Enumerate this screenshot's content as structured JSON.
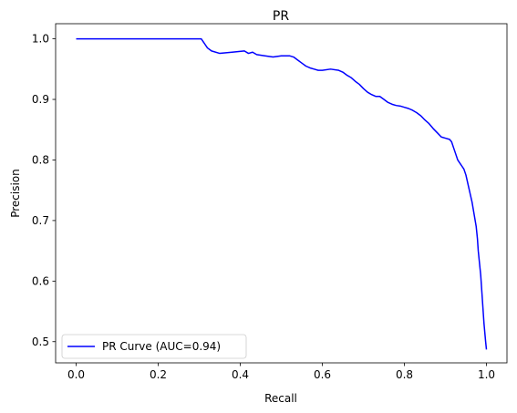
{
  "chart_data": {
    "type": "line",
    "title": "PR",
    "xlabel": "Recall",
    "ylabel": "Precision",
    "xlim": [
      -0.05,
      1.05
    ],
    "ylim": [
      0.465,
      1.025
    ],
    "xticks": [
      0.0,
      0.2,
      0.4,
      0.6,
      0.8,
      1.0
    ],
    "xtick_labels": [
      "0.0",
      "0.2",
      "0.4",
      "0.6",
      "0.8",
      "1.0"
    ],
    "yticks": [
      0.5,
      0.6,
      0.7,
      0.8,
      0.9,
      1.0
    ],
    "ytick_labels": [
      "0.5",
      "0.6",
      "0.7",
      "0.8",
      "0.9",
      "1.0"
    ],
    "grid": false,
    "legend_position": "lower-left",
    "series": [
      {
        "name": "PR Curve (AUC=0.94)",
        "color": "#0000ff",
        "x": [
          0.0,
          0.1,
          0.2,
          0.3,
          0.305,
          0.31,
          0.315,
          0.32,
          0.33,
          0.35,
          0.38,
          0.41,
          0.42,
          0.43,
          0.44,
          0.46,
          0.48,
          0.5,
          0.52,
          0.53,
          0.54,
          0.55,
          0.56,
          0.57,
          0.58,
          0.59,
          0.6,
          0.62,
          0.64,
          0.65,
          0.66,
          0.67,
          0.68,
          0.69,
          0.7,
          0.71,
          0.72,
          0.73,
          0.74,
          0.75,
          0.76,
          0.77,
          0.78,
          0.79,
          0.8,
          0.81,
          0.82,
          0.83,
          0.84,
          0.85,
          0.86,
          0.87,
          0.88,
          0.89,
          0.9,
          0.91,
          0.915,
          0.92,
          0.925,
          0.93,
          0.935,
          0.94,
          0.945,
          0.95,
          0.955,
          0.96,
          0.965,
          0.97,
          0.975,
          0.978,
          0.98,
          0.983,
          0.986,
          0.988,
          0.99,
          0.992,
          0.994,
          0.996,
          0.998,
          1.0
        ],
        "y": [
          1.0,
          1.0,
          1.0,
          1.0,
          1.0,
          0.995,
          0.99,
          0.985,
          0.98,
          0.976,
          0.978,
          0.98,
          0.976,
          0.978,
          0.974,
          0.972,
          0.97,
          0.972,
          0.972,
          0.97,
          0.965,
          0.96,
          0.955,
          0.952,
          0.95,
          0.948,
          0.948,
          0.95,
          0.948,
          0.945,
          0.94,
          0.936,
          0.93,
          0.925,
          0.918,
          0.912,
          0.908,
          0.905,
          0.905,
          0.9,
          0.895,
          0.892,
          0.89,
          0.889,
          0.887,
          0.885,
          0.882,
          0.878,
          0.873,
          0.866,
          0.86,
          0.852,
          0.845,
          0.838,
          0.836,
          0.834,
          0.83,
          0.82,
          0.81,
          0.8,
          0.795,
          0.79,
          0.785,
          0.775,
          0.76,
          0.745,
          0.73,
          0.71,
          0.69,
          0.67,
          0.65,
          0.63,
          0.61,
          0.59,
          0.57,
          0.55,
          0.53,
          0.515,
          0.5,
          0.487
        ]
      }
    ]
  }
}
